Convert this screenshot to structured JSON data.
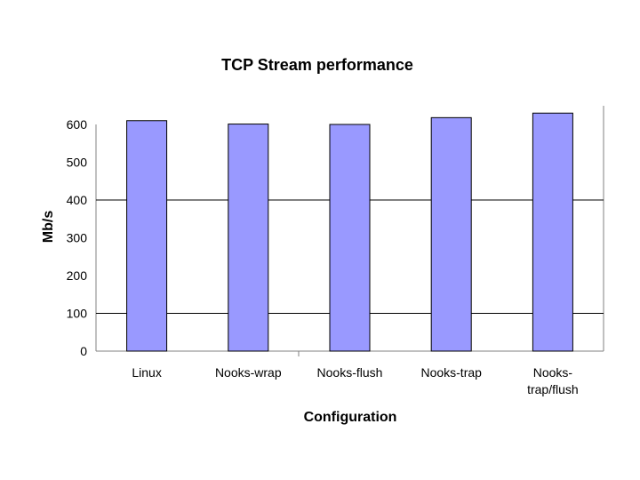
{
  "chart_data": {
    "type": "bar",
    "title": "TCP Stream performance",
    "xlabel": "Configuration",
    "ylabel": "Mb/s",
    "categories": [
      [
        "Linux"
      ],
      [
        "Nooks-wrap"
      ],
      [
        "Nooks-flush"
      ],
      [
        "Nooks-trap"
      ],
      [
        "Nooks-",
        "trap/flush"
      ]
    ],
    "values": [
      610,
      601,
      600,
      618,
      630
    ],
    "ylim": [
      0,
      650
    ],
    "yticks": [
      0,
      100,
      200,
      300,
      400,
      500,
      600
    ],
    "gridlines_at": [
      100,
      400
    ],
    "grid": "horizontal",
    "legend": "none",
    "colors": {
      "bar_fill": "#9999ff",
      "bar_stroke": "#000000",
      "gridline": "#000000",
      "axis": "#808080"
    }
  }
}
